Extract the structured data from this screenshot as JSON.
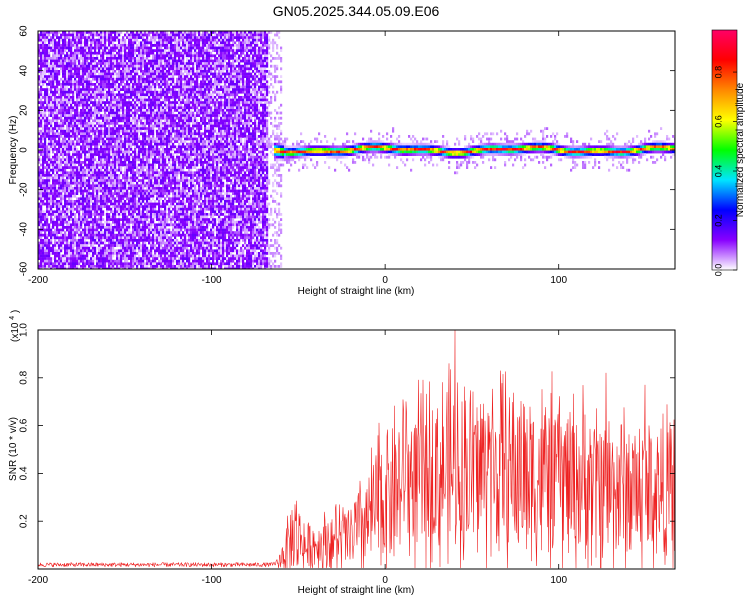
{
  "figure": {
    "title": "GN05.2025.344.05.09.E06"
  },
  "chart_data": [
    {
      "type": "heatmap",
      "xlabel": "Height of straight line (km)",
      "ylabel": "Frequency (Hz)",
      "xlim": [
        -200,
        167
      ],
      "ylim": [
        -60,
        60
      ],
      "x_ticks": [
        -200,
        -100,
        0,
        100
      ],
      "y_ticks": [
        -60,
        -40,
        -20,
        0,
        20,
        40,
        60
      ],
      "x_tick_labels": [
        "-200",
        "-100",
        "0",
        "100"
      ],
      "y_tick_labels": [
        "-60",
        "-40",
        "-20",
        "0",
        "20",
        "40",
        "60"
      ],
      "noise_region_x": [
        -200,
        -60
      ],
      "signal_onset_x": -65,
      "signal_center_hz": 0,
      "colorbar": {
        "label": "Normalized spectral amplitude",
        "range": [
          0,
          0.97
        ],
        "ticks": [
          0.0,
          0.2,
          0.4,
          0.6,
          0.8
        ],
        "tick_labels": [
          "0.0",
          "0.2",
          "0.4",
          "0.6",
          "0.8"
        ],
        "colors": [
          "#ffffff",
          "#8800ff",
          "#0000ff",
          "#00e5ff",
          "#00ff00",
          "#ffff00",
          "#ff8800",
          "#ff0000",
          "#ff0066"
        ]
      }
    },
    {
      "type": "line",
      "xlabel": "Height of straight line (km)",
      "ylabel": "SNR (10 * v/v)",
      "y_multiplier_label": "(x10",
      "y_multiplier_exp": "4",
      "y_multiplier_close": ")",
      "xlim": [
        -200,
        167
      ],
      "ylim": [
        0,
        1.0
      ],
      "x_ticks": [
        -200,
        -100,
        0,
        100
      ],
      "y_ticks": [
        0.2,
        0.4,
        0.6,
        0.8,
        1.0
      ],
      "x_tick_labels": [
        "-200",
        "-100",
        "0",
        "100"
      ],
      "y_tick_labels": [
        "0.2",
        "0.4",
        "0.6",
        "0.8",
        "1.0"
      ],
      "color": "#ee2222",
      "series": [
        {
          "x": [
            -200,
            -180,
            -160,
            -140,
            -120,
            -100,
            -80,
            -65,
            -60,
            -55,
            -50,
            -45,
            -40,
            -30,
            -20,
            -10,
            -5,
            0,
            10,
            20,
            30,
            40,
            50,
            60,
            80,
            100,
            120,
            140,
            160,
            167
          ],
          "values": [
            0.02,
            0.02,
            0.02,
            0.02,
            0.02,
            0.02,
            0.02,
            0.02,
            0.04,
            0.12,
            0.14,
            0.08,
            0.1,
            0.12,
            0.13,
            0.2,
            0.25,
            0.32,
            0.37,
            0.38,
            0.4,
            0.42,
            0.41,
            0.42,
            0.4,
            0.38,
            0.36,
            0.34,
            0.33,
            0.32
          ]
        }
      ],
      "peaks": [
        {
          "x": -52,
          "y": 0.27
        },
        {
          "x": 12,
          "y": 0.7
        },
        {
          "x": 40,
          "y": 1.0
        },
        {
          "x": 60,
          "y": 0.64
        },
        {
          "x": 100,
          "y": 0.65
        },
        {
          "x": 127,
          "y": 0.82
        },
        {
          "x": 150,
          "y": 0.77
        }
      ]
    }
  ]
}
